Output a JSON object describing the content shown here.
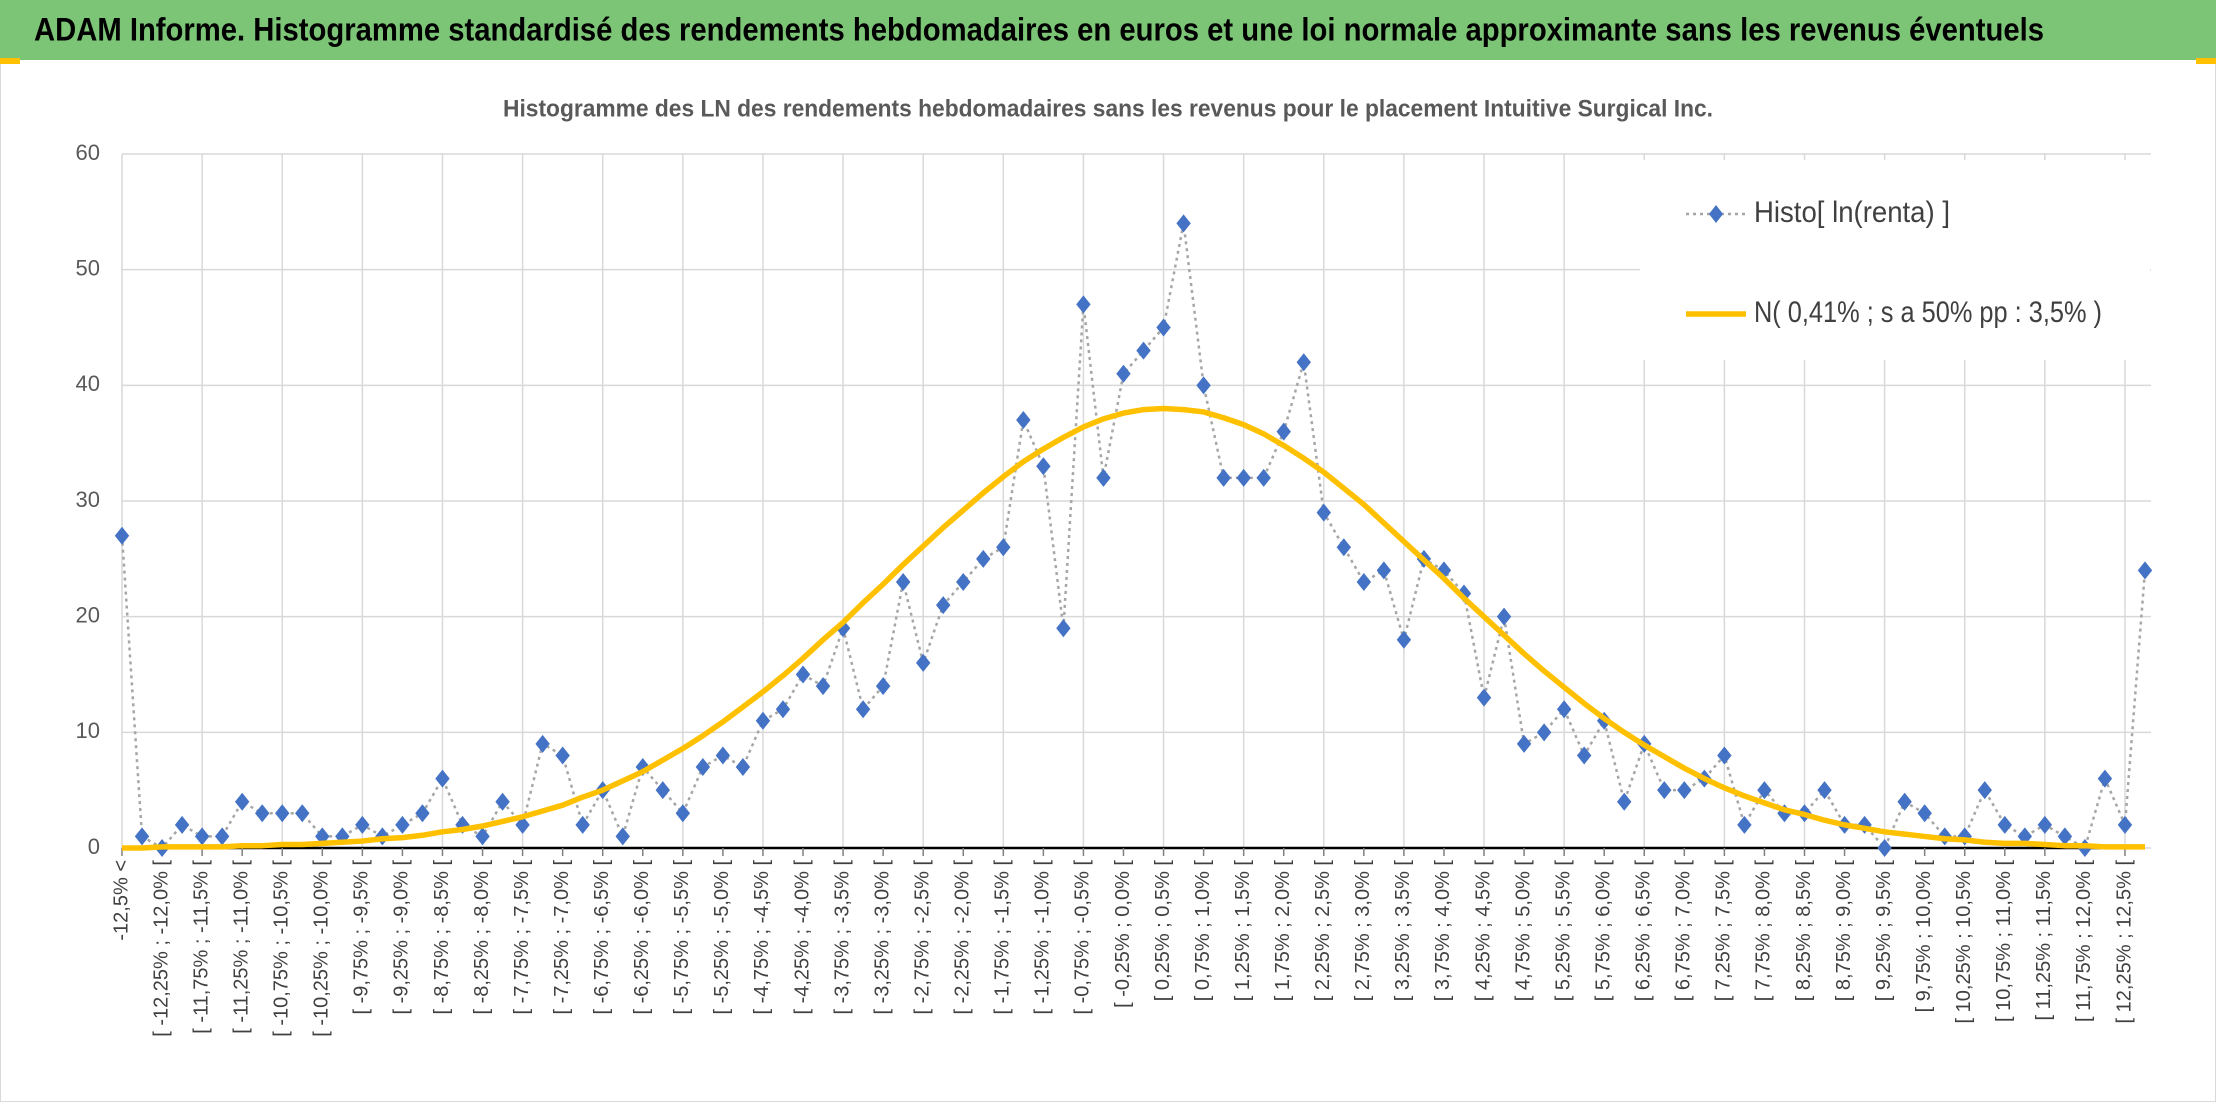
{
  "header": {
    "title": "ADAM Informe. Histogramme standardisé des rendements hebdomadaires en euros et une loi normale approximante sans les revenus éventuels"
  },
  "chart_data": {
    "type": "line",
    "title": "Histogramme des LN des rendements hebdomadaires sans les revenus pour le placement Intuitive Surgical Inc.",
    "categories": [
      "-12,5% <",
      null,
      "[ -12,25% ; -12,0% [",
      null,
      "[ -11,75% ; -11,5% [",
      null,
      "[ -11,25% ; -11,0% [",
      null,
      "[ -10,75% ; -10,5% [",
      null,
      "[ -10,25% ; -10,0% [",
      null,
      "[ -9,75% ; -9,5% [",
      null,
      "[ -9,25% ; -9,0% [",
      null,
      "[ -8,75% ; -8,5% [",
      null,
      "[ -8,25% ; -8,0% [",
      null,
      "[ -7,75% ; -7,5% [",
      null,
      "[ -7,25% ; -7,0% [",
      null,
      "[ -6,75% ; -6,5% [",
      null,
      "[ -6,25% ; -6,0% [",
      null,
      "[ -5,75% ; -5,5% [",
      null,
      "[ -5,25% ; -5,0% [",
      null,
      "[ -4,75% ; -4,5% [",
      null,
      "[ -4,25% ; -4,0% [",
      null,
      "[ -3,75% ; -3,5% [",
      null,
      "[ -3,25% ; -3,0% [",
      null,
      "[ -2,75% ; -2,5% [",
      null,
      "[ -2,25% ; -2,0% [",
      null,
      "[ -1,75% ; -1,5% [",
      null,
      "[ -1,25% ; -1,0% [",
      null,
      "[ -0,75% ; -0,5% [",
      null,
      "[ -0,25% ; 0,0% [",
      null,
      "[ 0,25% ; 0,5% [",
      null,
      "[ 0,75% ; 1,0% [",
      null,
      "[ 1,25% ; 1,5% [",
      null,
      "[ 1,75% ; 2,0% [",
      null,
      "[ 2,25% ; 2,5% [",
      null,
      "[ 2,75% ; 3,0% [",
      null,
      "[ 3,25% ; 3,5% [",
      null,
      "[ 3,75% ; 4,0% [",
      null,
      "[ 4,25% ; 4,5% [",
      null,
      "[ 4,75% ; 5,0% [",
      null,
      "[ 5,25% ; 5,5% [",
      null,
      "[ 5,75% ; 6,0% [",
      null,
      "[ 6,25% ; 6,5% [",
      null,
      "[ 6,75% ; 7,0% [",
      null,
      "[ 7,25% ; 7,5% [",
      null,
      "[ 7,75% ; 8,0% [",
      null,
      "[ 8,25% ; 8,5% [",
      null,
      "[ 8,75% ; 9,0% [",
      null,
      "[ 9,25% ; 9,5% [",
      null,
      "[ 9,75% ; 10,0% [",
      null,
      "[ 10,25% ; 10,5% [",
      null,
      "[ 10,75% ; 11,0% [",
      null,
      "[ 11,25% ; 11,5% [",
      null,
      "[ 11,75% ; 12,0% [",
      null,
      "[ 12,25% ; 12,5% [",
      null
    ],
    "series": [
      {
        "name": "Histo[ ln(renta) ]",
        "color": "#4472c4",
        "line_color": "#a6a6a6",
        "dashed": true,
        "markers": true,
        "values": [
          27,
          1,
          0,
          2,
          1,
          1,
          4,
          3,
          3,
          3,
          1,
          1,
          2,
          1,
          2,
          3,
          6,
          2,
          1,
          4,
          2,
          9,
          8,
          2,
          5,
          1,
          7,
          5,
          3,
          7,
          8,
          7,
          11,
          12,
          15,
          14,
          19,
          12,
          14,
          23,
          16,
          21,
          23,
          25,
          26,
          37,
          33,
          19,
          47,
          32,
          41,
          43,
          45,
          54,
          40,
          32,
          32,
          32,
          36,
          42,
          29,
          26,
          23,
          24,
          18,
          25,
          24,
          22,
          13,
          20,
          9,
          10,
          12,
          8,
          11,
          4,
          9,
          5,
          5,
          6,
          8,
          2,
          5,
          3,
          3,
          5,
          2,
          2,
          0,
          4,
          3,
          1,
          1,
          5,
          2,
          1,
          2,
          1,
          0,
          6,
          2,
          24
        ]
      },
      {
        "name": "N( 0,41% ; s a 50% pp : 3,5% )",
        "color": "#ffc000",
        "line_color": "#ffc000",
        "dashed": false,
        "markers": false,
        "values": [
          0.0,
          0.0,
          0.1,
          0.1,
          0.1,
          0.1,
          0.2,
          0.2,
          0.3,
          0.3,
          0.4,
          0.5,
          0.6,
          0.8,
          0.9,
          1.1,
          1.4,
          1.6,
          1.9,
          2.3,
          2.7,
          3.2,
          3.7,
          4.4,
          5.0,
          5.8,
          6.6,
          7.6,
          8.6,
          9.7,
          10.9,
          12.2,
          13.5,
          14.9,
          16.4,
          18.0,
          19.5,
          21.2,
          22.8,
          24.5,
          26.1,
          27.7,
          29.2,
          30.7,
          32.1,
          33.4,
          34.5,
          35.5,
          36.4,
          37.1,
          37.6,
          37.9,
          38.0,
          37.9,
          37.7,
          37.2,
          36.6,
          35.8,
          34.8,
          33.7,
          32.5,
          31.1,
          29.7,
          28.1,
          26.5,
          24.9,
          23.3,
          21.6,
          20.0,
          18.4,
          16.8,
          15.3,
          13.9,
          12.5,
          11.2,
          10.0,
          8.9,
          7.9,
          6.9,
          6.0,
          5.2,
          4.5,
          3.9,
          3.3,
          2.9,
          2.4,
          2.0,
          1.7,
          1.4,
          1.2,
          1.0,
          0.8,
          0.7,
          0.5,
          0.4,
          0.4,
          0.3,
          0.2,
          0.2,
          0.1,
          0.1,
          0.1
        ]
      }
    ],
    "ylim": [
      0,
      60
    ],
    "yticks": [
      0,
      10,
      20,
      30,
      40,
      50,
      60
    ],
    "grid": true,
    "legend": "top-right"
  }
}
